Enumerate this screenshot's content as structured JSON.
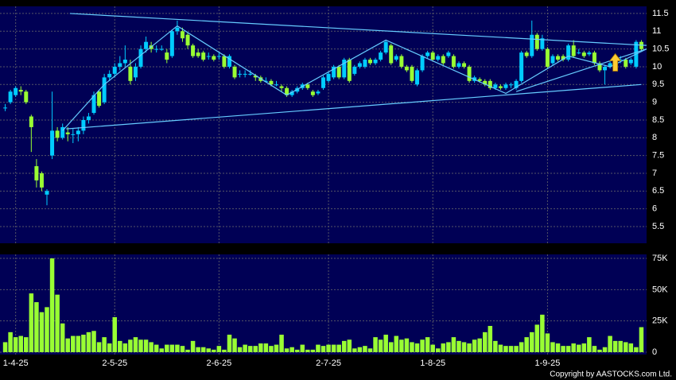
{
  "chart_data": {
    "type": "candlestick",
    "copyright": "Copyright by AASTOCKS.com Ltd.",
    "up_color": "#00ccff",
    "down_color": "#99ff33",
    "volume_color": "#99ff33",
    "line_color": "#66ccff",
    "arrow_color": "#ffcc33",
    "xlim": [
      -1,
      123
    ],
    "xticks": [
      {
        "value": 2,
        "label": "1-4-25"
      },
      {
        "value": 21,
        "label": "2-5-25"
      },
      {
        "value": 41,
        "label": "2-6-25"
      },
      {
        "value": 62,
        "label": "2-7-25"
      },
      {
        "value": 82,
        "label": "1-8-25"
      },
      {
        "value": 104,
        "label": "1-9-25"
      }
    ],
    "ylim": [
      5.03,
      11.7
    ],
    "yticks": [
      5.5,
      6,
      6.5,
      7,
      7.5,
      8,
      8.5,
      9,
      9.5,
      10,
      10.5,
      11,
      11.5
    ],
    "vlim": [
      -1900,
      78200
    ],
    "vticks": [
      0,
      {
        "value": 25000,
        "label": "25K"
      },
      {
        "value": 50000,
        "label": "50K"
      },
      {
        "value": 75000,
        "label": "75K"
      }
    ],
    "candles": [
      [
        8.85,
        8.95,
        8.75,
        8.85
      ],
      [
        9.0,
        9.35,
        8.95,
        9.3
      ],
      [
        9.2,
        9.45,
        9.15,
        9.4
      ],
      [
        9.35,
        9.45,
        9.2,
        9.3
      ],
      [
        9.3,
        9.35,
        8.95,
        9.0
      ],
      [
        8.6,
        8.65,
        7.6,
        8.3
      ],
      [
        7.2,
        7.4,
        6.6,
        6.8
      ],
      [
        7.0,
        7.05,
        6.5,
        6.6
      ],
      [
        6.4,
        6.55,
        6.1,
        6.5
      ],
      [
        7.5,
        9.3,
        7.4,
        8.2
      ],
      [
        8.2,
        8.3,
        7.9,
        8.0
      ],
      [
        8.0,
        8.4,
        7.95,
        8.3
      ],
      [
        8.15,
        8.3,
        7.9,
        8.1
      ],
      [
        8.1,
        8.25,
        7.85,
        8.1
      ],
      [
        8.1,
        8.3,
        7.9,
        8.2
      ],
      [
        8.2,
        8.6,
        8.1,
        8.5
      ],
      [
        8.5,
        8.7,
        8.4,
        8.6
      ],
      [
        8.7,
        9.3,
        8.65,
        9.2
      ],
      [
        9.3,
        9.35,
        8.85,
        8.9
      ],
      [
        9.0,
        9.8,
        8.95,
        9.7
      ],
      [
        9.7,
        9.9,
        9.6,
        9.8
      ],
      [
        9.8,
        10.1,
        9.7,
        10.0
      ],
      [
        10.0,
        10.3,
        9.9,
        10.1
      ],
      [
        10.1,
        10.6,
        10.0,
        10.2
      ],
      [
        10.0,
        10.2,
        9.5,
        9.6
      ],
      [
        9.7,
        10.1,
        9.6,
        10.0
      ],
      [
        10.0,
        10.6,
        9.95,
        10.5
      ],
      [
        10.5,
        10.85,
        10.4,
        10.7
      ],
      [
        10.6,
        10.7,
        10.4,
        10.5
      ],
      [
        10.5,
        10.6,
        10.4,
        10.5
      ],
      [
        10.5,
        10.6,
        10.45,
        10.5
      ],
      [
        10.4,
        10.5,
        10.1,
        10.2
      ],
      [
        10.3,
        11.05,
        10.25,
        11.0
      ],
      [
        11.0,
        11.3,
        10.9,
        11.1
      ],
      [
        11.0,
        11.1,
        10.7,
        10.8
      ],
      [
        10.9,
        10.95,
        10.5,
        10.6
      ],
      [
        10.6,
        10.65,
        10.25,
        10.3
      ],
      [
        10.4,
        10.5,
        10.25,
        10.3
      ],
      [
        10.4,
        10.45,
        10.15,
        10.2
      ],
      [
        10.3,
        10.4,
        10.2,
        10.3
      ],
      [
        10.3,
        10.35,
        10.15,
        10.2
      ],
      [
        10.3,
        10.4,
        10.2,
        10.3
      ],
      [
        10.3,
        10.35,
        9.95,
        10.0
      ],
      [
        10.0,
        10.35,
        9.95,
        10.3
      ],
      [
        10.0,
        10.05,
        9.65,
        9.7
      ],
      [
        9.8,
        9.9,
        9.7,
        9.8
      ],
      [
        9.8,
        9.9,
        9.7,
        9.8
      ],
      [
        9.8,
        9.9,
        9.75,
        9.8
      ],
      [
        9.75,
        9.8,
        9.6,
        9.7
      ],
      [
        9.7,
        9.75,
        9.55,
        9.6
      ],
      [
        9.6,
        9.7,
        9.55,
        9.6
      ],
      [
        9.6,
        9.65,
        9.45,
        9.5
      ],
      [
        9.5,
        9.6,
        9.45,
        9.5
      ],
      [
        9.45,
        9.5,
        9.3,
        9.4
      ],
      [
        9.4,
        9.45,
        9.15,
        9.2
      ],
      [
        9.2,
        9.35,
        9.15,
        9.3
      ],
      [
        9.3,
        9.45,
        9.25,
        9.4
      ],
      [
        9.4,
        9.55,
        9.35,
        9.5
      ],
      [
        9.5,
        9.55,
        9.35,
        9.4
      ],
      [
        9.3,
        9.35,
        9.15,
        9.2
      ],
      [
        9.25,
        9.35,
        9.2,
        9.3
      ],
      [
        9.4,
        9.75,
        9.35,
        9.7
      ],
      [
        9.6,
        9.85,
        9.55,
        9.8
      ],
      [
        9.7,
        10.05,
        9.65,
        10.0
      ],
      [
        10.0,
        10.05,
        9.65,
        9.7
      ],
      [
        9.7,
        10.25,
        9.65,
        10.2
      ],
      [
        10.2,
        10.25,
        9.55,
        9.6
      ],
      [
        9.8,
        10.05,
        9.75,
        10.0
      ],
      [
        10.0,
        10.15,
        9.95,
        10.1
      ],
      [
        10.0,
        10.25,
        9.95,
        10.2
      ],
      [
        10.2,
        10.25,
        10.05,
        10.1
      ],
      [
        10.1,
        10.25,
        10.05,
        10.2
      ],
      [
        10.2,
        10.45,
        10.15,
        10.4
      ],
      [
        10.4,
        10.75,
        10.35,
        10.7
      ],
      [
        10.6,
        10.65,
        10.05,
        10.1
      ],
      [
        10.2,
        10.35,
        10.15,
        10.3
      ],
      [
        10.3,
        10.35,
        9.95,
        10.0
      ],
      [
        10.0,
        10.05,
        9.85,
        9.9
      ],
      [
        10.0,
        10.05,
        9.55,
        9.6
      ],
      [
        9.5,
        9.95,
        9.45,
        9.9
      ],
      [
        9.9,
        10.35,
        9.85,
        10.3
      ],
      [
        10.3,
        10.45,
        10.25,
        10.4
      ],
      [
        10.4,
        10.45,
        10.15,
        10.2
      ],
      [
        10.2,
        10.35,
        10.15,
        10.3
      ],
      [
        10.3,
        10.35,
        10.05,
        10.1
      ],
      [
        10.3,
        10.45,
        10.25,
        10.4
      ],
      [
        10.3,
        10.35,
        9.95,
        10.0
      ],
      [
        10.0,
        10.15,
        9.95,
        10.1
      ],
      [
        10.1,
        10.15,
        9.95,
        10.0
      ],
      [
        10.0,
        10.05,
        9.55,
        9.6
      ],
      [
        9.6,
        9.75,
        9.55,
        9.7
      ],
      [
        9.65,
        9.7,
        9.55,
        9.6
      ],
      [
        9.6,
        9.65,
        9.45,
        9.5
      ],
      [
        9.6,
        9.65,
        9.35,
        9.4
      ],
      [
        9.4,
        9.55,
        9.35,
        9.5
      ],
      [
        9.45,
        9.5,
        9.35,
        9.4
      ],
      [
        9.4,
        9.55,
        9.35,
        9.5
      ],
      [
        9.5,
        9.55,
        9.4,
        9.5
      ],
      [
        9.4,
        9.65,
        9.35,
        9.6
      ],
      [
        9.6,
        10.45,
        9.55,
        10.4
      ],
      [
        10.4,
        10.45,
        10.25,
        10.3
      ],
      [
        10.3,
        11.3,
        10.25,
        10.9
      ],
      [
        10.9,
        10.95,
        10.45,
        10.5
      ],
      [
        10.5,
        10.9,
        10.45,
        10.8
      ],
      [
        10.5,
        10.55,
        9.95,
        10.0
      ],
      [
        10.1,
        10.35,
        10.05,
        10.3
      ],
      [
        10.3,
        10.35,
        10.15,
        10.2
      ],
      [
        10.3,
        10.35,
        10.15,
        10.2
      ],
      [
        10.2,
        10.65,
        10.15,
        10.6
      ],
      [
        10.6,
        10.75,
        10.25,
        10.3
      ],
      [
        10.4,
        10.5,
        10.35,
        10.4
      ],
      [
        10.4,
        10.45,
        10.25,
        10.3
      ],
      [
        10.35,
        10.45,
        10.3,
        10.4
      ],
      [
        10.4,
        10.45,
        10.05,
        10.1
      ],
      [
        10.1,
        10.15,
        9.85,
        9.9
      ],
      [
        9.9,
        10.05,
        9.5,
        10.0
      ],
      [
        10.0,
        10.15,
        9.95,
        10.1
      ],
      [
        10.1,
        10.25,
        10.05,
        10.2
      ],
      [
        10.2,
        10.3,
        10.1,
        10.2
      ],
      [
        10.2,
        10.25,
        9.95,
        10.0
      ],
      [
        10.1,
        10.25,
        10.05,
        10.2
      ],
      [
        10.0,
        10.75,
        9.95,
        10.7
      ],
      [
        10.7,
        10.75,
        10.45,
        10.5
      ]
    ],
    "volume": [
      8000,
      16000,
      12000,
      13000,
      12000,
      47000,
      40000,
      32000,
      36000,
      75000,
      46000,
      23000,
      11000,
      13000,
      13000,
      14000,
      16000,
      17000,
      8000,
      12000,
      7000,
      28000,
      9000,
      7000,
      10000,
      12000,
      10000,
      10000,
      8000,
      6000,
      3000,
      6000,
      6000,
      6000,
      5000,
      2000,
      9000,
      4000,
      4000,
      3000,
      2000,
      5000,
      2000,
      14000,
      11000,
      4000,
      6000,
      5000,
      5000,
      7000,
      7000,
      5000,
      6000,
      14000,
      3000,
      4000,
      2000,
      6000,
      2000,
      2000,
      6000,
      5000,
      6000,
      6000,
      6000,
      9000,
      10000,
      3000,
      4000,
      5000,
      3000,
      12000,
      10000,
      14000,
      8000,
      13000,
      10000,
      11000,
      8000,
      7000,
      10000,
      12000,
      6000,
      3000,
      7000,
      8000,
      12000,
      9000,
      8000,
      7000,
      10000,
      11000,
      16000,
      21000,
      9000,
      6000,
      5000,
      5000,
      5000,
      8000,
      12000,
      16000,
      22000,
      30000,
      15000,
      8000,
      7000,
      5000,
      5000,
      7000,
      6000,
      7000,
      12000,
      5000,
      2000,
      4000,
      13000,
      9000,
      9000,
      8000,
      7000,
      4000,
      20000
    ],
    "lines": [
      {
        "points": [
          [
            12.4,
            11.5
          ],
          [
            123,
            10.6
          ]
        ]
      },
      {
        "points": [
          [
            11.7,
            8.25
          ],
          [
            122,
            9.5
          ]
        ]
      },
      {
        "points": [
          [
            11,
            8.2
          ],
          [
            19,
            9.5
          ],
          [
            33,
            11.15
          ],
          [
            54,
            9.2
          ],
          [
            73,
            10.75
          ],
          [
            96,
            9.25
          ],
          [
            108,
            10.3
          ],
          [
            116,
            10.0
          ],
          [
            123,
            10.5
          ]
        ]
      },
      {
        "points": [
          [
            98,
            9.3
          ],
          [
            123,
            10.5
          ]
        ]
      }
    ],
    "arrow": {
      "x": 117,
      "y": 10.1
    }
  }
}
